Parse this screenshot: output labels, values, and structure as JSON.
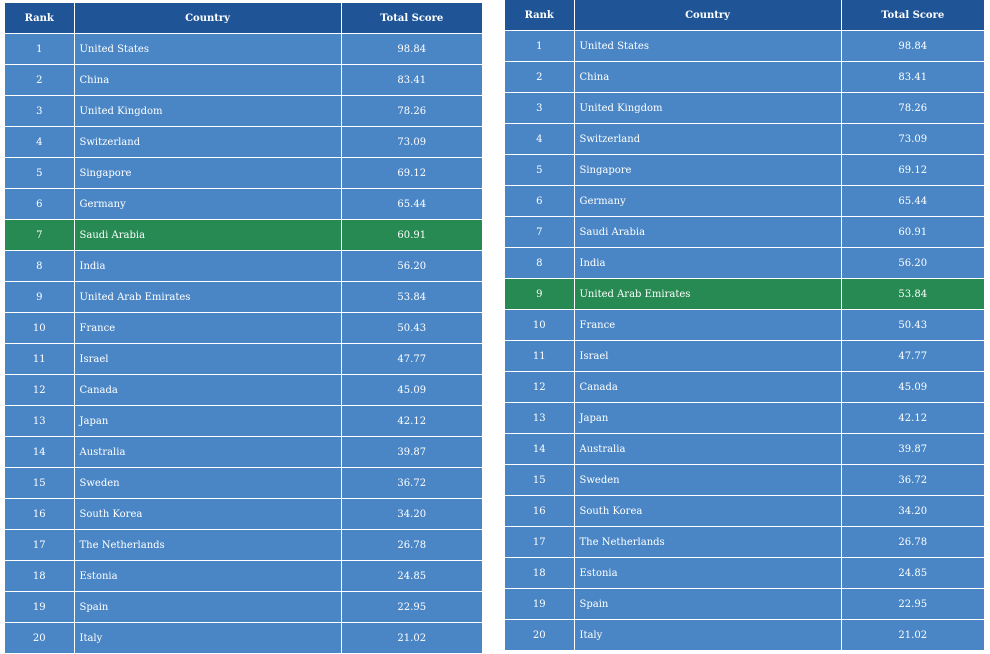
{
  "tables": [
    {
      "headers": [
        "Rank",
        "Country",
        "Total Score"
      ],
      "highlight_rank": "7",
      "rows": [
        {
          "rank": "1",
          "country": "United States",
          "score": "98.84"
        },
        {
          "rank": "2",
          "country": "China",
          "score": "83.41"
        },
        {
          "rank": "3",
          "country": "United Kingdom",
          "score": "78.26"
        },
        {
          "rank": "4",
          "country": "Switzerland",
          "score": "73.09"
        },
        {
          "rank": "5",
          "country": "Singapore",
          "score": "69.12"
        },
        {
          "rank": "6",
          "country": "Germany",
          "score": "65.44"
        },
        {
          "rank": "7",
          "country": "Saudi Arabia",
          "score": "60.91"
        },
        {
          "rank": "8",
          "country": "India",
          "score": "56.20"
        },
        {
          "rank": "9",
          "country": "United Arab Emirates",
          "score": "53.84"
        },
        {
          "rank": "10",
          "country": "France",
          "score": "50.43"
        },
        {
          "rank": "11",
          "country": "Israel",
          "score": "47.77"
        },
        {
          "rank": "12",
          "country": "Canada",
          "score": "45.09"
        },
        {
          "rank": "13",
          "country": "Japan",
          "score": "42.12"
        },
        {
          "rank": "14",
          "country": "Australia",
          "score": "39.87"
        },
        {
          "rank": "15",
          "country": "Sweden",
          "score": "36.72"
        },
        {
          "rank": "16",
          "country": "South Korea",
          "score": "34.20"
        },
        {
          "rank": "17",
          "country": "The Netherlands",
          "score": "26.78"
        },
        {
          "rank": "18",
          "country": "Estonia",
          "score": "24.85"
        },
        {
          "rank": "19",
          "country": "Spain",
          "score": "22.95"
        },
        {
          "rank": "20",
          "country": "Italy",
          "score": "21.02"
        }
      ]
    },
    {
      "headers": [
        "Rank",
        "Country",
        "Total Score"
      ],
      "highlight_rank": "9",
      "rows": [
        {
          "rank": "1",
          "country": "United States",
          "score": "98.84"
        },
        {
          "rank": "2",
          "country": "China",
          "score": "83.41"
        },
        {
          "rank": "3",
          "country": "United Kingdom",
          "score": "78.26"
        },
        {
          "rank": "4",
          "country": "Switzerland",
          "score": "73.09"
        },
        {
          "rank": "5",
          "country": "Singapore",
          "score": "69.12"
        },
        {
          "rank": "6",
          "country": "Germany",
          "score": "65.44"
        },
        {
          "rank": "7",
          "country": "Saudi Arabia",
          "score": "60.91"
        },
        {
          "rank": "8",
          "country": "India",
          "score": "56.20"
        },
        {
          "rank": "9",
          "country": "United Arab Emirates",
          "score": "53.84"
        },
        {
          "rank": "10",
          "country": "France",
          "score": "50.43"
        },
        {
          "rank": "11",
          "country": "Israel",
          "score": "47.77"
        },
        {
          "rank": "12",
          "country": "Canada",
          "score": "45.09"
        },
        {
          "rank": "13",
          "country": "Japan",
          "score": "42.12"
        },
        {
          "rank": "14",
          "country": "Australia",
          "score": "39.87"
        },
        {
          "rank": "15",
          "country": "Sweden",
          "score": "36.72"
        },
        {
          "rank": "16",
          "country": "South Korea",
          "score": "34.20"
        },
        {
          "rank": "17",
          "country": "The Netherlands",
          "score": "26.78"
        },
        {
          "rank": "18",
          "country": "Estonia",
          "score": "24.85"
        },
        {
          "rank": "19",
          "country": "Spain",
          "score": "22.95"
        },
        {
          "rank": "20",
          "country": "Italy",
          "score": "21.02"
        }
      ]
    }
  ],
  "colors": {
    "header_bg": "#1f5597",
    "row_bg": "#4a86c5",
    "highlight_bg": "#268a52",
    "text": "#ffffff"
  }
}
